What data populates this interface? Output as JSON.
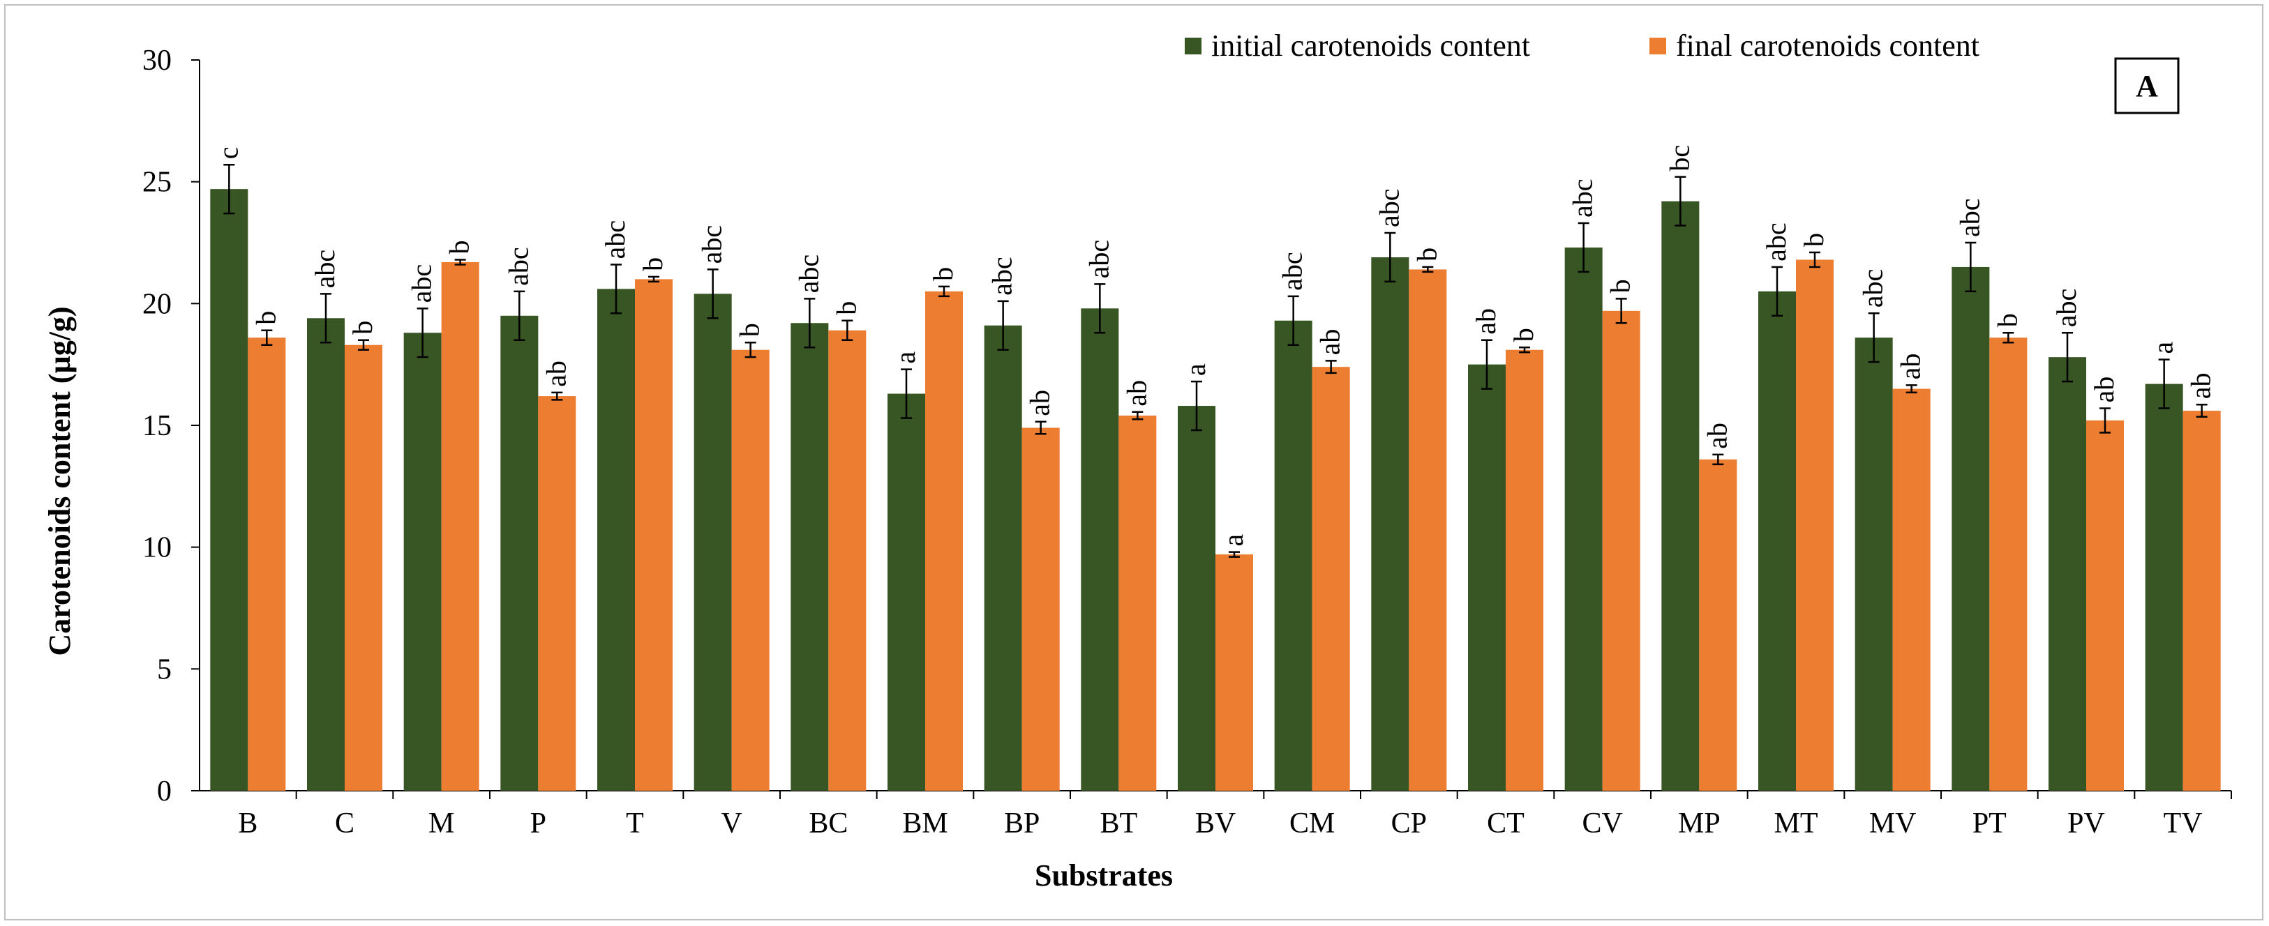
{
  "chart_data": {
    "type": "bar",
    "panel_label": "A",
    "xlabel": "Substrates",
    "ylabel": "Carotenoids content (µg/g)",
    "ylim": [
      0,
      30
    ],
    "yticks": [
      "0",
      "5",
      "10",
      "15",
      "20",
      "25",
      "30"
    ],
    "grid": false,
    "legend_position": "top-right",
    "categories": [
      "B",
      "C",
      "M",
      "P",
      "T",
      "V",
      "BC",
      "BM",
      "BP",
      "BT",
      "BV",
      "CM",
      "CP",
      "CT",
      "CV",
      "MP",
      "MT",
      "MV",
      "PT",
      "PV",
      "TV"
    ],
    "series": [
      {
        "name": "initial carotenoids content",
        "color": "#375623",
        "values": [
          24.7,
          19.4,
          18.8,
          19.5,
          20.6,
          20.4,
          19.2,
          16.3,
          19.1,
          19.8,
          15.8,
          19.3,
          21.9,
          17.5,
          22.3,
          24.2,
          20.5,
          18.6,
          21.5,
          17.8,
          16.7
        ],
        "errors": [
          1.0,
          1.0,
          1.0,
          1.0,
          1.0,
          1.0,
          1.0,
          1.0,
          1.0,
          1.0,
          1.0,
          1.0,
          1.0,
          1.0,
          1.0,
          1.0,
          1.0,
          1.0,
          1.0,
          1.0,
          1.0
        ],
        "labels": [
          "c",
          "abc",
          "abc",
          "abc",
          "abc",
          "abc",
          "abc",
          "a",
          "abc",
          "abc",
          "a",
          "abc",
          "abc",
          "ab",
          "abc",
          "bc",
          "abc",
          "abc",
          "abc",
          "abc",
          "a"
        ]
      },
      {
        "name": "final carotenoids content",
        "color": "#ED7D31",
        "values": [
          18.6,
          18.3,
          21.7,
          16.2,
          21.0,
          18.1,
          18.9,
          20.5,
          14.9,
          15.4,
          9.7,
          17.4,
          21.4,
          18.1,
          19.7,
          13.6,
          21.8,
          16.5,
          18.6,
          15.2,
          15.6
        ],
        "errors": [
          0.3,
          0.2,
          0.1,
          0.15,
          0.1,
          0.3,
          0.4,
          0.2,
          0.25,
          0.15,
          0.1,
          0.25,
          0.1,
          0.1,
          0.5,
          0.2,
          0.3,
          0.15,
          0.2,
          0.5,
          0.25
        ],
        "labels": [
          "b",
          "b",
          "b",
          "ab",
          "b",
          "b",
          "b",
          "b",
          "ab",
          "ab",
          "a",
          "ab",
          "b",
          "b",
          "b",
          "ab",
          "b",
          "ab",
          "b",
          "ab",
          "ab"
        ]
      }
    ]
  }
}
